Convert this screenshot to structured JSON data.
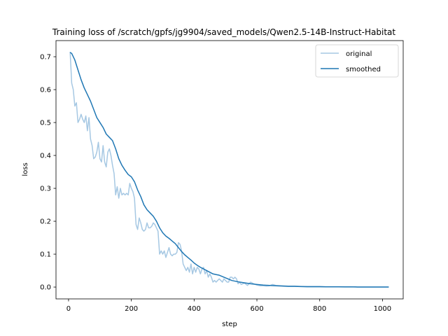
{
  "chart_data": {
    "type": "line",
    "title": "Training loss of /scratch/gpfs/jg9904/saved_models/Qwen2.5-14B-Instruct-Habitat",
    "xlabel": "step",
    "ylabel": "loss",
    "xlim": [
      -40,
      1066
    ],
    "ylim": [
      -0.036,
      0.749
    ],
    "xticks": [
      0,
      200,
      400,
      600,
      800,
      1000
    ],
    "xtick_labels": [
      "0",
      "200",
      "400",
      "600",
      "800",
      "1000"
    ],
    "yticks": [
      0.0,
      0.1,
      0.2,
      0.3,
      0.4,
      0.5,
      0.6,
      0.7
    ],
    "ytick_labels": [
      "0.0",
      "0.1",
      "0.2",
      "0.3",
      "0.4",
      "0.5",
      "0.6",
      "0.7"
    ],
    "grid": false,
    "legend_position": "upper right",
    "legend": [
      "original",
      "smoothed"
    ],
    "series": [
      {
        "name": "original",
        "color": "#a6c8e3",
        "x": [
          5,
          10,
          15,
          20,
          25,
          30,
          35,
          40,
          45,
          50,
          55,
          60,
          65,
          70,
          75,
          80,
          85,
          90,
          95,
          100,
          105,
          110,
          115,
          120,
          125,
          130,
          135,
          140,
          145,
          150,
          155,
          160,
          165,
          170,
          175,
          180,
          185,
          190,
          195,
          200,
          205,
          210,
          215,
          220,
          225,
          230,
          235,
          240,
          245,
          250,
          255,
          260,
          265,
          270,
          275,
          280,
          285,
          290,
          295,
          300,
          305,
          310,
          315,
          320,
          325,
          330,
          335,
          340,
          345,
          350,
          355,
          360,
          365,
          370,
          375,
          380,
          385,
          390,
          395,
          400,
          405,
          410,
          415,
          420,
          425,
          430,
          435,
          440,
          445,
          450,
          455,
          460,
          465,
          470,
          475,
          480,
          485,
          490,
          495,
          500,
          505,
          510,
          515,
          520,
          525,
          530,
          535,
          540,
          545,
          550,
          560,
          570,
          580,
          590,
          600,
          610,
          620,
          630,
          640,
          650,
          660,
          680,
          700,
          720,
          740,
          760,
          780,
          800,
          820,
          840,
          860,
          880,
          900,
          920,
          940,
          960,
          980,
          1000,
          1020
        ],
        "y": [
          0.715,
          0.62,
          0.6,
          0.55,
          0.56,
          0.5,
          0.51,
          0.525,
          0.51,
          0.5,
          0.52,
          0.475,
          0.515,
          0.45,
          0.43,
          0.39,
          0.395,
          0.41,
          0.44,
          0.39,
          0.38,
          0.43,
          0.38,
          0.365,
          0.41,
          0.42,
          0.4,
          0.37,
          0.345,
          0.28,
          0.305,
          0.27,
          0.3,
          0.28,
          0.285,
          0.28,
          0.285,
          0.28,
          0.315,
          0.3,
          0.29,
          0.27,
          0.19,
          0.175,
          0.21,
          0.195,
          0.175,
          0.17,
          0.175,
          0.195,
          0.18,
          0.18,
          0.185,
          0.195,
          0.19,
          0.18,
          0.17,
          0.1,
          0.11,
          0.1,
          0.11,
          0.09,
          0.105,
          0.12,
          0.1,
          0.095,
          0.1,
          0.1,
          0.105,
          0.135,
          0.13,
          0.11,
          0.07,
          0.06,
          0.05,
          0.06,
          0.045,
          0.07,
          0.04,
          0.06,
          0.045,
          0.06,
          0.055,
          0.04,
          0.055,
          0.06,
          0.04,
          0.05,
          0.03,
          0.04,
          0.03,
          0.015,
          0.02,
          0.015,
          0.02,
          0.025,
          0.02,
          0.015,
          0.025,
          0.02,
          0.015,
          0.015,
          0.03,
          0.03,
          0.025,
          0.03,
          0.025,
          0.01,
          0.015,
          0.008,
          0.012,
          0.005,
          0.015,
          0.01,
          0.006,
          0.004,
          0.004,
          0.003,
          0.004,
          0.008,
          0.005,
          0.004,
          0.003,
          0.003,
          0.002,
          0.002,
          0.002,
          0.002,
          0.001,
          0.001,
          0.001,
          0.001,
          0.001,
          0.0,
          0.0,
          0.0,
          0.0,
          0.0,
          0.0
        ]
      },
      {
        "name": "smoothed",
        "color": "#1f77b4",
        "x": [
          5,
          10,
          20,
          30,
          40,
          50,
          60,
          70,
          80,
          90,
          100,
          110,
          120,
          130,
          140,
          150,
          160,
          170,
          180,
          190,
          200,
          210,
          220,
          230,
          240,
          250,
          260,
          270,
          280,
          290,
          300,
          310,
          320,
          330,
          340,
          350,
          360,
          370,
          380,
          390,
          400,
          410,
          420,
          430,
          440,
          450,
          460,
          470,
          480,
          490,
          500,
          510,
          520,
          540,
          560,
          580,
          600,
          620,
          640,
          660,
          680,
          700,
          720,
          740,
          760,
          780,
          800,
          820,
          840,
          860,
          880,
          900,
          920,
          940,
          960,
          980,
          1000,
          1020
        ],
        "y": [
          0.713,
          0.71,
          0.69,
          0.66,
          0.63,
          0.605,
          0.585,
          0.565,
          0.54,
          0.515,
          0.5,
          0.485,
          0.465,
          0.455,
          0.445,
          0.42,
          0.39,
          0.37,
          0.355,
          0.342,
          0.335,
          0.32,
          0.295,
          0.275,
          0.25,
          0.235,
          0.225,
          0.215,
          0.2,
          0.18,
          0.165,
          0.155,
          0.148,
          0.14,
          0.132,
          0.12,
          0.108,
          0.098,
          0.09,
          0.082,
          0.073,
          0.066,
          0.06,
          0.055,
          0.05,
          0.045,
          0.04,
          0.038,
          0.036,
          0.032,
          0.028,
          0.024,
          0.02,
          0.016,
          0.013,
          0.01,
          0.008,
          0.006,
          0.005,
          0.004,
          0.003,
          0.002,
          0.002,
          0.0015,
          0.001,
          0.001,
          0.001,
          0.0008,
          0.0007,
          0.0006,
          0.0005,
          0.0004,
          0.0003,
          0.0003,
          0.0002,
          0.0002,
          0.0001,
          0.0001
        ]
      }
    ]
  }
}
